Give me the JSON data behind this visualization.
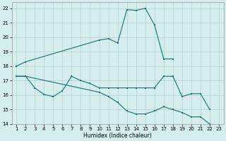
{
  "xlabel": "Humidex (Indice chaleur)",
  "color": "#1a7070",
  "bg_color": "#d4eeed",
  "grid_color": "#b0d0d0",
  "ylim": [
    14,
    22.4
  ],
  "xlim": [
    0.5,
    23.5
  ],
  "yticks": [
    14,
    15,
    16,
    17,
    18,
    19,
    20,
    21,
    22
  ],
  "xticks": [
    1,
    2,
    3,
    4,
    5,
    6,
    7,
    8,
    9,
    10,
    11,
    12,
    13,
    14,
    15,
    16,
    17,
    18,
    19,
    20,
    21,
    22,
    23
  ],
  "upper_x": [
    1,
    2,
    10,
    11,
    12,
    13,
    14,
    15,
    16,
    17,
    18
  ],
  "upper_y": [
    18.0,
    18.3,
    19.8,
    19.9,
    19.6,
    21.9,
    21.85,
    22.0,
    20.85,
    18.5,
    18.5
  ],
  "middle_x": [
    1,
    2,
    3,
    4,
    5,
    6,
    7,
    8,
    9,
    10,
    11,
    12,
    13,
    14,
    15,
    16,
    17,
    18,
    19,
    20,
    21,
    22
  ],
  "middle_y": [
    17.3,
    17.3,
    16.5,
    16.05,
    15.9,
    16.3,
    17.3,
    17.0,
    16.8,
    16.5,
    16.5,
    16.5,
    16.5,
    16.5,
    16.5,
    16.5,
    17.3,
    17.3,
    15.9,
    16.1,
    16.1,
    15.0
  ],
  "lower_x": [
    1,
    2,
    10,
    11,
    12,
    13,
    14,
    15,
    16,
    17,
    18,
    19,
    20,
    21,
    22,
    23
  ],
  "lower_y": [
    17.3,
    17.3,
    16.2,
    15.9,
    15.5,
    14.9,
    14.7,
    14.7,
    14.9,
    15.2,
    15.0,
    14.8,
    14.5,
    14.5,
    14.0,
    13.9
  ]
}
